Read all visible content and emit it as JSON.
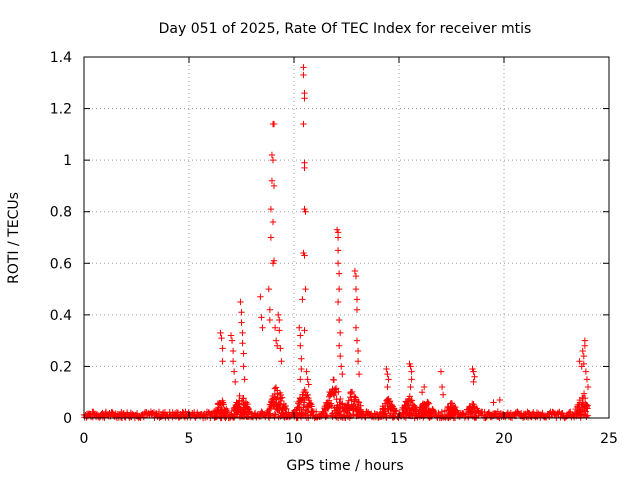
{
  "chart_data": {
    "type": "scatter",
    "title": "Day 051 of 2025, Rate Of TEC Index for receiver mtis",
    "xlabel": "GPS time / hours",
    "ylabel": "ROTI / TECUs",
    "xlim": [
      0,
      25
    ],
    "ylim": [
      0,
      1.4
    ],
    "xticks": [
      "0",
      "5",
      "10",
      "15",
      "20",
      "25"
    ],
    "yticks": [
      "0",
      "0.2",
      "0.4",
      "0.6",
      "0.8",
      "1",
      "1.2",
      "1.4"
    ],
    "grid": true,
    "marker": "+",
    "color": "#ff0000",
    "series": [
      {
        "points": [
          [
            6.5,
            0.33
          ],
          [
            6.55,
            0.31
          ],
          [
            6.6,
            0.27
          ],
          [
            6.6,
            0.22
          ],
          [
            7.0,
            0.32
          ],
          [
            7.05,
            0.3
          ],
          [
            7.1,
            0.26
          ],
          [
            7.1,
            0.22
          ],
          [
            7.15,
            0.18
          ],
          [
            7.2,
            0.14
          ],
          [
            7.45,
            0.45
          ],
          [
            7.5,
            0.41
          ],
          [
            7.5,
            0.37
          ],
          [
            7.55,
            0.33
          ],
          [
            7.55,
            0.29
          ],
          [
            7.6,
            0.25
          ],
          [
            7.6,
            0.2
          ],
          [
            7.65,
            0.15
          ],
          [
            8.4,
            0.47
          ],
          [
            8.45,
            0.39
          ],
          [
            8.5,
            0.35
          ],
          [
            8.8,
            0.5
          ],
          [
            8.85,
            0.42
          ],
          [
            8.85,
            0.38
          ],
          [
            8.9,
            0.7
          ],
          [
            8.9,
            0.81
          ],
          [
            8.95,
            0.92
          ],
          [
            8.95,
            1.02
          ],
          [
            9.0,
            1.14
          ],
          [
            9.05,
            1.14
          ],
          [
            9.0,
            1.0
          ],
          [
            9.05,
            0.9
          ],
          [
            9.0,
            0.76
          ],
          [
            9.05,
            0.61
          ],
          [
            9.0,
            0.6
          ],
          [
            9.1,
            0.35
          ],
          [
            9.15,
            0.3
          ],
          [
            9.2,
            0.28
          ],
          [
            9.25,
            0.4
          ],
          [
            9.3,
            0.38
          ],
          [
            9.3,
            0.34
          ],
          [
            9.35,
            0.27
          ],
          [
            9.4,
            0.22
          ],
          [
            10.25,
            0.35
          ],
          [
            10.3,
            0.32
          ],
          [
            10.3,
            0.28
          ],
          [
            10.35,
            0.23
          ],
          [
            10.35,
            0.19
          ],
          [
            10.3,
            0.15
          ],
          [
            10.4,
            0.46
          ],
          [
            10.45,
            1.36
          ],
          [
            10.45,
            1.33
          ],
          [
            10.5,
            1.26
          ],
          [
            10.5,
            1.24
          ],
          [
            10.45,
            1.14
          ],
          [
            10.5,
            0.99
          ],
          [
            10.5,
            0.97
          ],
          [
            10.5,
            0.81
          ],
          [
            10.55,
            0.8
          ],
          [
            10.45,
            0.64
          ],
          [
            10.5,
            0.63
          ],
          [
            10.55,
            0.5
          ],
          [
            10.5,
            0.34
          ],
          [
            10.6,
            0.18
          ],
          [
            10.65,
            0.15
          ],
          [
            10.7,
            0.13
          ],
          [
            12.05,
            0.73
          ],
          [
            12.1,
            0.72
          ],
          [
            12.1,
            0.7
          ],
          [
            12.1,
            0.65
          ],
          [
            12.1,
            0.6
          ],
          [
            12.15,
            0.56
          ],
          [
            12.15,
            0.5
          ],
          [
            12.1,
            0.45
          ],
          [
            12.15,
            0.38
          ],
          [
            12.2,
            0.33
          ],
          [
            12.15,
            0.28
          ],
          [
            12.2,
            0.24
          ],
          [
            12.25,
            0.2
          ],
          [
            12.3,
            0.17
          ],
          [
            12.9,
            0.57
          ],
          [
            12.95,
            0.55
          ],
          [
            12.95,
            0.5
          ],
          [
            13.0,
            0.46
          ],
          [
            13.0,
            0.42
          ],
          [
            12.95,
            0.35
          ],
          [
            13.0,
            0.3
          ],
          [
            13.05,
            0.26
          ],
          [
            13.05,
            0.22
          ],
          [
            13.1,
            0.17
          ],
          [
            14.4,
            0.19
          ],
          [
            14.45,
            0.17
          ],
          [
            14.5,
            0.15
          ],
          [
            14.45,
            0.12
          ],
          [
            15.5,
            0.21
          ],
          [
            15.55,
            0.2
          ],
          [
            15.6,
            0.18
          ],
          [
            15.6,
            0.15
          ],
          [
            15.55,
            0.12
          ],
          [
            16.1,
            0.1
          ],
          [
            16.2,
            0.12
          ],
          [
            17.0,
            0.18
          ],
          [
            17.05,
            0.12
          ],
          [
            17.1,
            0.09
          ],
          [
            18.5,
            0.19
          ],
          [
            18.55,
            0.18
          ],
          [
            18.6,
            0.16
          ],
          [
            18.55,
            0.14
          ],
          [
            19.5,
            0.06
          ],
          [
            19.8,
            0.07
          ],
          [
            23.6,
            0.22
          ],
          [
            23.7,
            0.2
          ],
          [
            23.75,
            0.26
          ],
          [
            23.8,
            0.21
          ],
          [
            23.8,
            0.24
          ],
          [
            23.85,
            0.3
          ],
          [
            23.85,
            0.28
          ],
          [
            23.9,
            0.18
          ],
          [
            23.95,
            0.15
          ],
          [
            24.0,
            0.12
          ]
        ],
        "baseline": {
          "x_range": [
            0,
            24
          ],
          "bursts": [
            [
              6.5,
              0.08
            ],
            [
              7.5,
              0.1
            ],
            [
              9.2,
              0.14
            ],
            [
              10.5,
              0.12
            ],
            [
              11.9,
              0.16
            ],
            [
              12.8,
              0.12
            ],
            [
              14.5,
              0.08
            ],
            [
              15.5,
              0.09
            ],
            [
              16.3,
              0.08
            ],
            [
              17.5,
              0.06
            ],
            [
              18.5,
              0.06
            ],
            [
              23.8,
              0.1
            ]
          ]
        }
      }
    ]
  }
}
